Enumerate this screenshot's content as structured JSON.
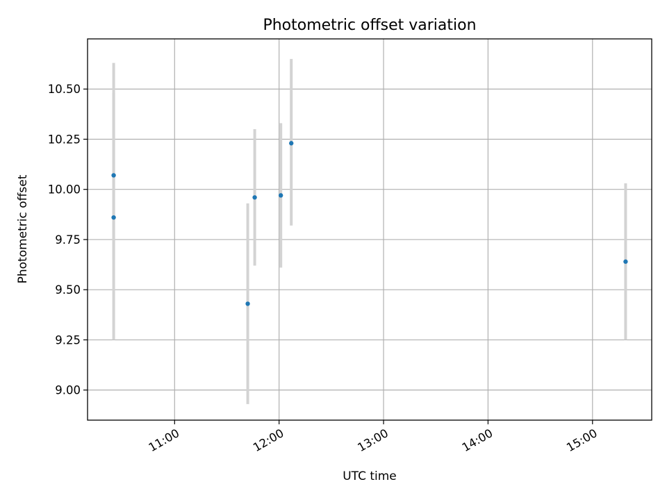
{
  "chart_data": {
    "type": "scatter",
    "title": "Photometric offset variation",
    "xlabel": "UTC time",
    "ylabel": "Photometric offset",
    "xlim": [
      "10:10",
      "15:34"
    ],
    "ylim": [
      8.85,
      10.75
    ],
    "grid": true,
    "x_ticks": [
      "11:00",
      "12:00",
      "13:00",
      "14:00",
      "15:00"
    ],
    "y_ticks": [
      "9.00",
      "9.25",
      "9.50",
      "9.75",
      "10.00",
      "10.25",
      "10.50"
    ],
    "points": [
      {
        "x": "10:25",
        "y": 10.07,
        "err_low": 9.65,
        "err_high": 10.48
      },
      {
        "x": "10:25",
        "y": 9.86,
        "err_low": 9.25,
        "err_high": 10.63
      },
      {
        "x": "11:42",
        "y": 9.43,
        "err_low": 8.93,
        "err_high": 9.93
      },
      {
        "x": "11:46",
        "y": 9.96,
        "err_low": 9.62,
        "err_high": 10.3
      },
      {
        "x": "12:01",
        "y": 9.97,
        "err_low": 9.61,
        "err_high": 10.33
      },
      {
        "x": "12:07",
        "y": 10.23,
        "err_low": 9.82,
        "err_high": 10.65
      },
      {
        "x": "15:19",
        "y": 9.64,
        "err_low": 9.25,
        "err_high": 10.03
      }
    ],
    "colors": {
      "marker": "#1f77b4",
      "errorbar": "#d3d3d3"
    }
  }
}
